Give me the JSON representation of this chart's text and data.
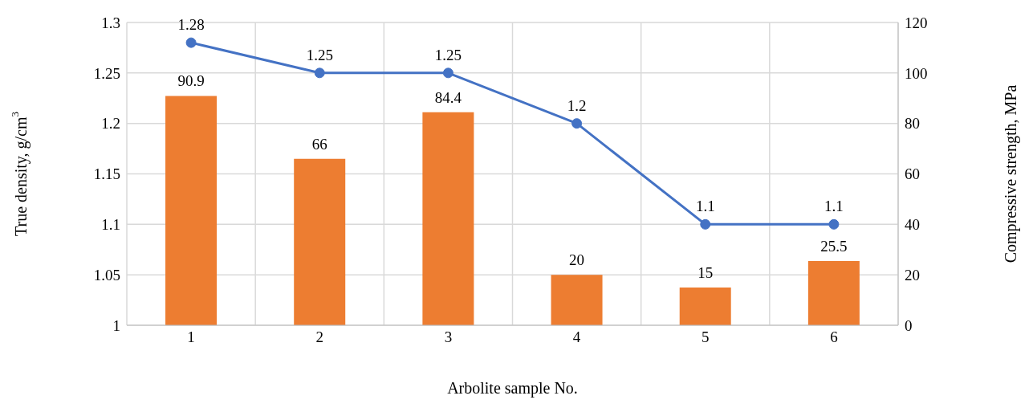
{
  "chart_data": {
    "type": "bar",
    "xlabel": "Arbolite sample No.",
    "ylabel": "True density, g/cm$^{3}$",
    "y2label": "Compressive strength, MPa",
    "categories": [
      "1",
      "2",
      "3",
      "4",
      "5",
      "6"
    ],
    "series": [
      {
        "axis": "y2",
        "color": "#ed7d31",
        "values": [
          90.9,
          66,
          84.4,
          20,
          15,
          25.5
        ]
      },
      {
        "type": "line",
        "axis": "y",
        "color": "#4472c4",
        "values": [
          1.28,
          1.25,
          1.25,
          1.2,
          1.1,
          1.1
        ]
      }
    ],
    "ylim": [
      1,
      1.3
    ],
    "yticks": [
      1,
      1.05,
      1.1,
      1.15,
      1.2,
      1.25,
      1.3
    ],
    "y2lim": [
      0,
      120
    ],
    "y2ticks": [
      0,
      20,
      40,
      60,
      80,
      100,
      120
    ],
    "grid": true,
    "data_labels": true,
    "marker": "circle",
    "line_style": "solid",
    "legend": false
  }
}
